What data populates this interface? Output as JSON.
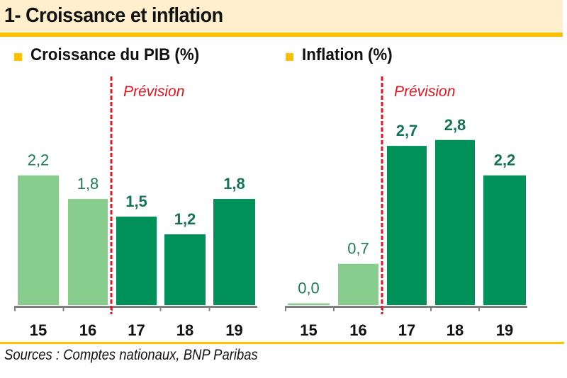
{
  "header": {
    "title": "1- Croissance et inflation"
  },
  "colors": {
    "header_bg": "#FFEFCC",
    "accent": "#FFC000",
    "actual_bar": "#88CC8E",
    "forecast_bar": "#00905A",
    "label_text": "#1E7A5C",
    "forecast_label_text": "#137356",
    "forecast_line": "#E8141E",
    "axis": "#808080"
  },
  "chart_data": [
    {
      "type": "bar",
      "title": "Croissance du PIB (%)",
      "categories": [
        "15",
        "16",
        "17",
        "18",
        "19"
      ],
      "values": [
        2.2,
        1.8,
        1.5,
        1.2,
        1.8
      ],
      "value_labels": [
        "2,2",
        "1,8",
        "1,5",
        "1,2",
        "1,8"
      ],
      "forecast": [
        false,
        false,
        true,
        true,
        true
      ],
      "annotation": "Prévision",
      "forecast_starts_at": "17",
      "xlabel": "",
      "ylabel": "",
      "ylim": [
        0,
        3.2
      ],
      "grid": false,
      "legend": "none"
    },
    {
      "type": "bar",
      "title": "Inflation (%)",
      "categories": [
        "15",
        "16",
        "17",
        "18",
        "19"
      ],
      "values": [
        0.0,
        0.7,
        2.7,
        2.8,
        2.2
      ],
      "value_labels": [
        "0,0",
        "0,7",
        "2,7",
        "2,8",
        "2,2"
      ],
      "forecast": [
        false,
        false,
        true,
        true,
        true
      ],
      "annotation": "Prévision",
      "forecast_starts_at": "17",
      "xlabel": "",
      "ylabel": "",
      "ylim": [
        0,
        3.2
      ],
      "grid": false,
      "legend": "none"
    }
  ],
  "footer": {
    "source": "Sources : Comptes nationaux, BNP Paribas"
  }
}
